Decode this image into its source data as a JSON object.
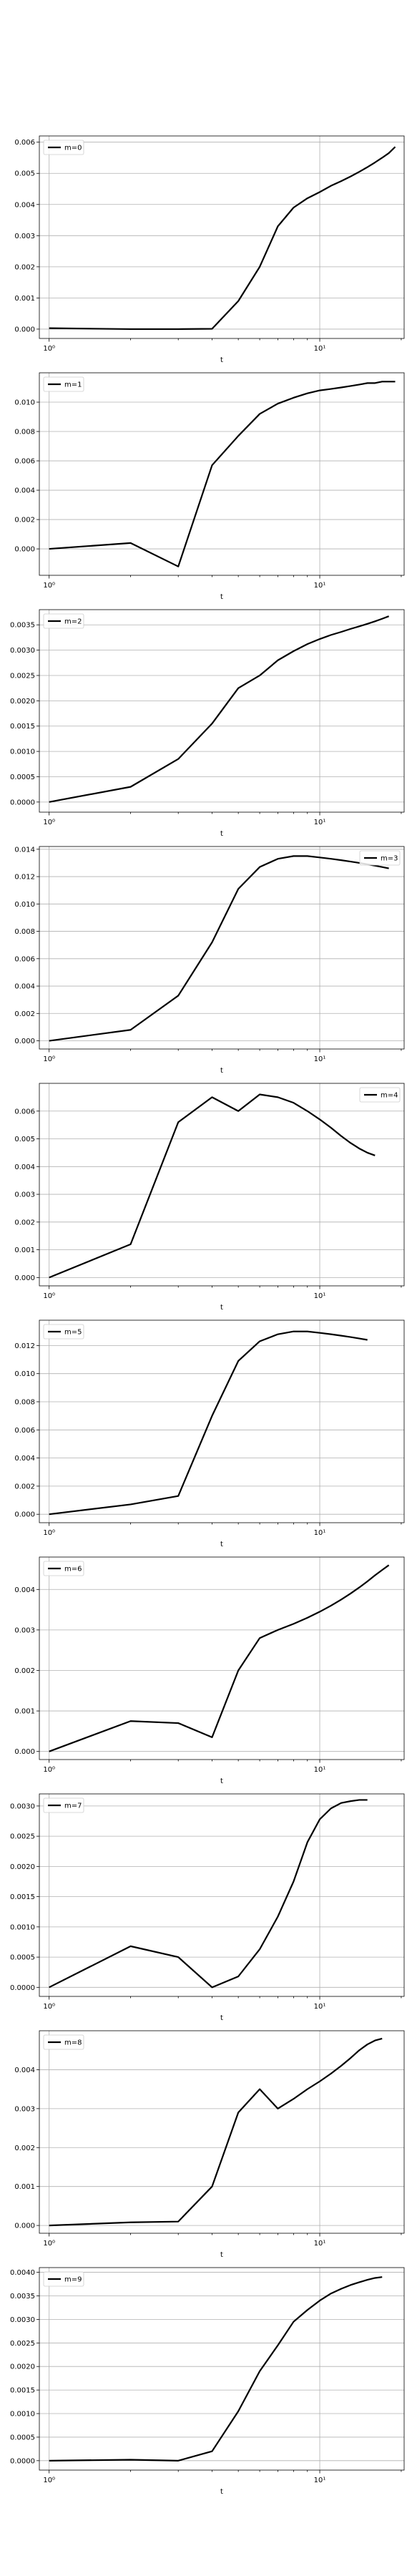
{
  "chart_data": [
    {
      "type": "line",
      "series": [
        {
          "name": "m=0",
          "values": [
            3e-05,
            0.0,
            0.0,
            1e-05,
            0.0009,
            0.002,
            0.0033,
            0.0039,
            0.0042,
            0.0044,
            0.0046,
            0.00475,
            0.0049,
            0.00505,
            0.0052,
            0.00535,
            0.0055,
            0.00565,
            0.00585
          ]
        }
      ],
      "xlabel": "t",
      "ylim": [
        -0.0003,
        0.0062
      ],
      "yticks": [
        0.0,
        0.001,
        0.002,
        0.003,
        0.004,
        0.005,
        0.006
      ],
      "ytick_labels": [
        "0.000",
        "0.001",
        "0.002",
        "0.003",
        "0.004",
        "0.005",
        "0.006"
      ],
      "legend": "upper-left",
      "grid": true
    },
    {
      "type": "line",
      "series": [
        {
          "name": "m=1",
          "values": [
            0.0,
            0.0004,
            -0.0012,
            0.0057,
            0.0077,
            0.0092,
            0.0099,
            0.0103,
            0.0106,
            0.0108,
            0.0109,
            0.011,
            0.0111,
            0.0112,
            0.0113,
            0.0113,
            0.0114,
            0.0114,
            0.0114
          ]
        }
      ],
      "xlabel": "t",
      "ylim": [
        -0.0018,
        0.012
      ],
      "yticks": [
        0.0,
        0.002,
        0.004,
        0.006,
        0.008,
        0.01
      ],
      "ytick_labels": [
        "0.000",
        "0.002",
        "0.004",
        "0.006",
        "0.008",
        "0.010"
      ],
      "legend": "upper-left",
      "grid": true
    },
    {
      "type": "line",
      "series": [
        {
          "name": "m=2",
          "values": [
            0.0,
            0.0003,
            0.00085,
            0.00155,
            0.00225,
            0.0025,
            0.0028,
            0.00298,
            0.00312,
            0.00322,
            0.0033,
            0.00336,
            0.00342,
            0.00347,
            0.00352,
            0.00357,
            0.00362,
            0.00367
          ]
        }
      ],
      "xlabel": "t",
      "ylim": [
        -0.0002,
        0.0038
      ],
      "yticks": [
        0.0,
        0.0005,
        0.001,
        0.0015,
        0.002,
        0.0025,
        0.003,
        0.0035
      ],
      "ytick_labels": [
        "0.0000",
        "0.0005",
        "0.0010",
        "0.0015",
        "0.0020",
        "0.0025",
        "0.0030",
        "0.0035"
      ],
      "legend": "upper-left",
      "grid": true
    },
    {
      "type": "line",
      "series": [
        {
          "name": "m=3",
          "values": [
            0.0,
            0.0008,
            0.0033,
            0.0072,
            0.0111,
            0.0127,
            0.0133,
            0.0135,
            0.0135,
            0.0134,
            0.0133,
            0.0132,
            0.0131,
            0.013,
            0.0129,
            0.0128,
            0.0127,
            0.0126
          ]
        }
      ],
      "xlabel": "t",
      "ylim": [
        -0.0006,
        0.0142
      ],
      "yticks": [
        0.0,
        0.002,
        0.004,
        0.006,
        0.008,
        0.01,
        0.012,
        0.014
      ],
      "ytick_labels": [
        "0.000",
        "0.002",
        "0.004",
        "0.006",
        "0.008",
        "0.010",
        "0.012",
        "0.014"
      ],
      "legend": "upper-right",
      "grid": true
    },
    {
      "type": "line",
      "series": [
        {
          "name": "m=4",
          "values": [
            0.0,
            0.0012,
            0.0056,
            0.0065,
            0.006,
            0.0066,
            0.0065,
            0.0063,
            0.006,
            0.0057,
            0.0054,
            0.0051,
            0.00485,
            0.00465,
            0.0045,
            0.0044
          ]
        }
      ],
      "xlabel": "t",
      "ylim": [
        -0.0003,
        0.007
      ],
      "yticks": [
        0.0,
        0.001,
        0.002,
        0.003,
        0.004,
        0.005,
        0.006
      ],
      "ytick_labels": [
        "0.000",
        "0.001",
        "0.002",
        "0.003",
        "0.004",
        "0.005",
        "0.006"
      ],
      "legend": "upper-right",
      "grid": true
    },
    {
      "type": "line",
      "series": [
        {
          "name": "m=5",
          "values": [
            0.0,
            0.0007,
            0.0013,
            0.007,
            0.0109,
            0.0123,
            0.0128,
            0.013,
            0.013,
            0.0129,
            0.0128,
            0.0127,
            0.0126,
            0.0125,
            0.0124
          ]
        }
      ],
      "xlabel": "t",
      "ylim": [
        -0.0006,
        0.0138
      ],
      "yticks": [
        0.0,
        0.002,
        0.004,
        0.006,
        0.008,
        0.01,
        0.012
      ],
      "ytick_labels": [
        "0.000",
        "0.002",
        "0.004",
        "0.006",
        "0.008",
        "0.010",
        "0.012"
      ],
      "legend": "upper-left",
      "grid": true
    },
    {
      "type": "line",
      "series": [
        {
          "name": "m=6",
          "values": [
            0.0,
            0.00075,
            0.0007,
            0.00035,
            0.002,
            0.0028,
            0.003,
            0.00315,
            0.0033,
            0.00345,
            0.0036,
            0.00375,
            0.0039,
            0.00405,
            0.0042,
            0.00435,
            0.00448,
            0.0046
          ]
        }
      ],
      "xlabel": "t",
      "ylim": [
        -0.0002,
        0.0048
      ],
      "yticks": [
        0.0,
        0.001,
        0.002,
        0.003,
        0.004
      ],
      "ytick_labels": [
        "0.000",
        "0.001",
        "0.002",
        "0.003",
        "0.004"
      ],
      "legend": "upper-left",
      "grid": true
    },
    {
      "type": "line",
      "series": [
        {
          "name": "m=7",
          "values": [
            0.0,
            0.00068,
            0.0005,
            0.0,
            0.00018,
            0.00063,
            0.00117,
            0.00175,
            0.0024,
            0.00278,
            0.00296,
            0.00305,
            0.00308,
            0.0031,
            0.0031
          ]
        }
      ],
      "xlabel": "t",
      "ylim": [
        -0.00015,
        0.0032
      ],
      "yticks": [
        0.0,
        0.0005,
        0.001,
        0.0015,
        0.002,
        0.0025,
        0.003
      ],
      "ytick_labels": [
        "0.0000",
        "0.0005",
        "0.0010",
        "0.0015",
        "0.0020",
        "0.0025",
        "0.0030"
      ],
      "legend": "upper-left",
      "grid": true
    },
    {
      "type": "line",
      "series": [
        {
          "name": "m=8",
          "values": [
            0.0,
            8e-05,
            0.0001,
            0.001,
            0.0029,
            0.0035,
            0.003,
            0.00325,
            0.0035,
            0.0037,
            0.0039,
            0.0041,
            0.0043,
            0.0045,
            0.00465,
            0.00475,
            0.0048
          ]
        }
      ],
      "xlabel": "t",
      "ylim": [
        -0.0002,
        0.005
      ],
      "yticks": [
        0.0,
        0.001,
        0.002,
        0.003,
        0.004
      ],
      "ytick_labels": [
        "0.000",
        "0.001",
        "0.002",
        "0.003",
        "0.004"
      ],
      "legend": "upper-left",
      "grid": true
    },
    {
      "type": "line",
      "series": [
        {
          "name": "m=9",
          "values": [
            0.0,
            2e-05,
            0.0,
            0.0002,
            0.00105,
            0.0019,
            0.00245,
            0.00295,
            0.0032,
            0.0034,
            0.00355,
            0.00365,
            0.00373,
            0.00379,
            0.00384,
            0.00388,
            0.0039
          ]
        }
      ],
      "xlabel": "t",
      "ylim": [
        -0.0002,
        0.0041
      ],
      "yticks": [
        0.0,
        0.0005,
        0.001,
        0.0015,
        0.002,
        0.0025,
        0.003,
        0.0035,
        0.004
      ],
      "ytick_labels": [
        "0.0000",
        "0.0005",
        "0.0010",
        "0.0015",
        "0.0020",
        "0.0025",
        "0.0030",
        "0.0035",
        "0.0040"
      ],
      "legend": "upper-left",
      "grid": true
    }
  ],
  "x_axis": {
    "scale": "log",
    "x": [
      1,
      2,
      3,
      4,
      5,
      6,
      7,
      8,
      9,
      10,
      11,
      12,
      13,
      14,
      15,
      16,
      17,
      18,
      19
    ],
    "ticks": [
      1,
      10
    ],
    "tick_labels": [
      "10⁰",
      "10¹"
    ],
    "xlim": [
      0.92,
      20.5
    ]
  }
}
